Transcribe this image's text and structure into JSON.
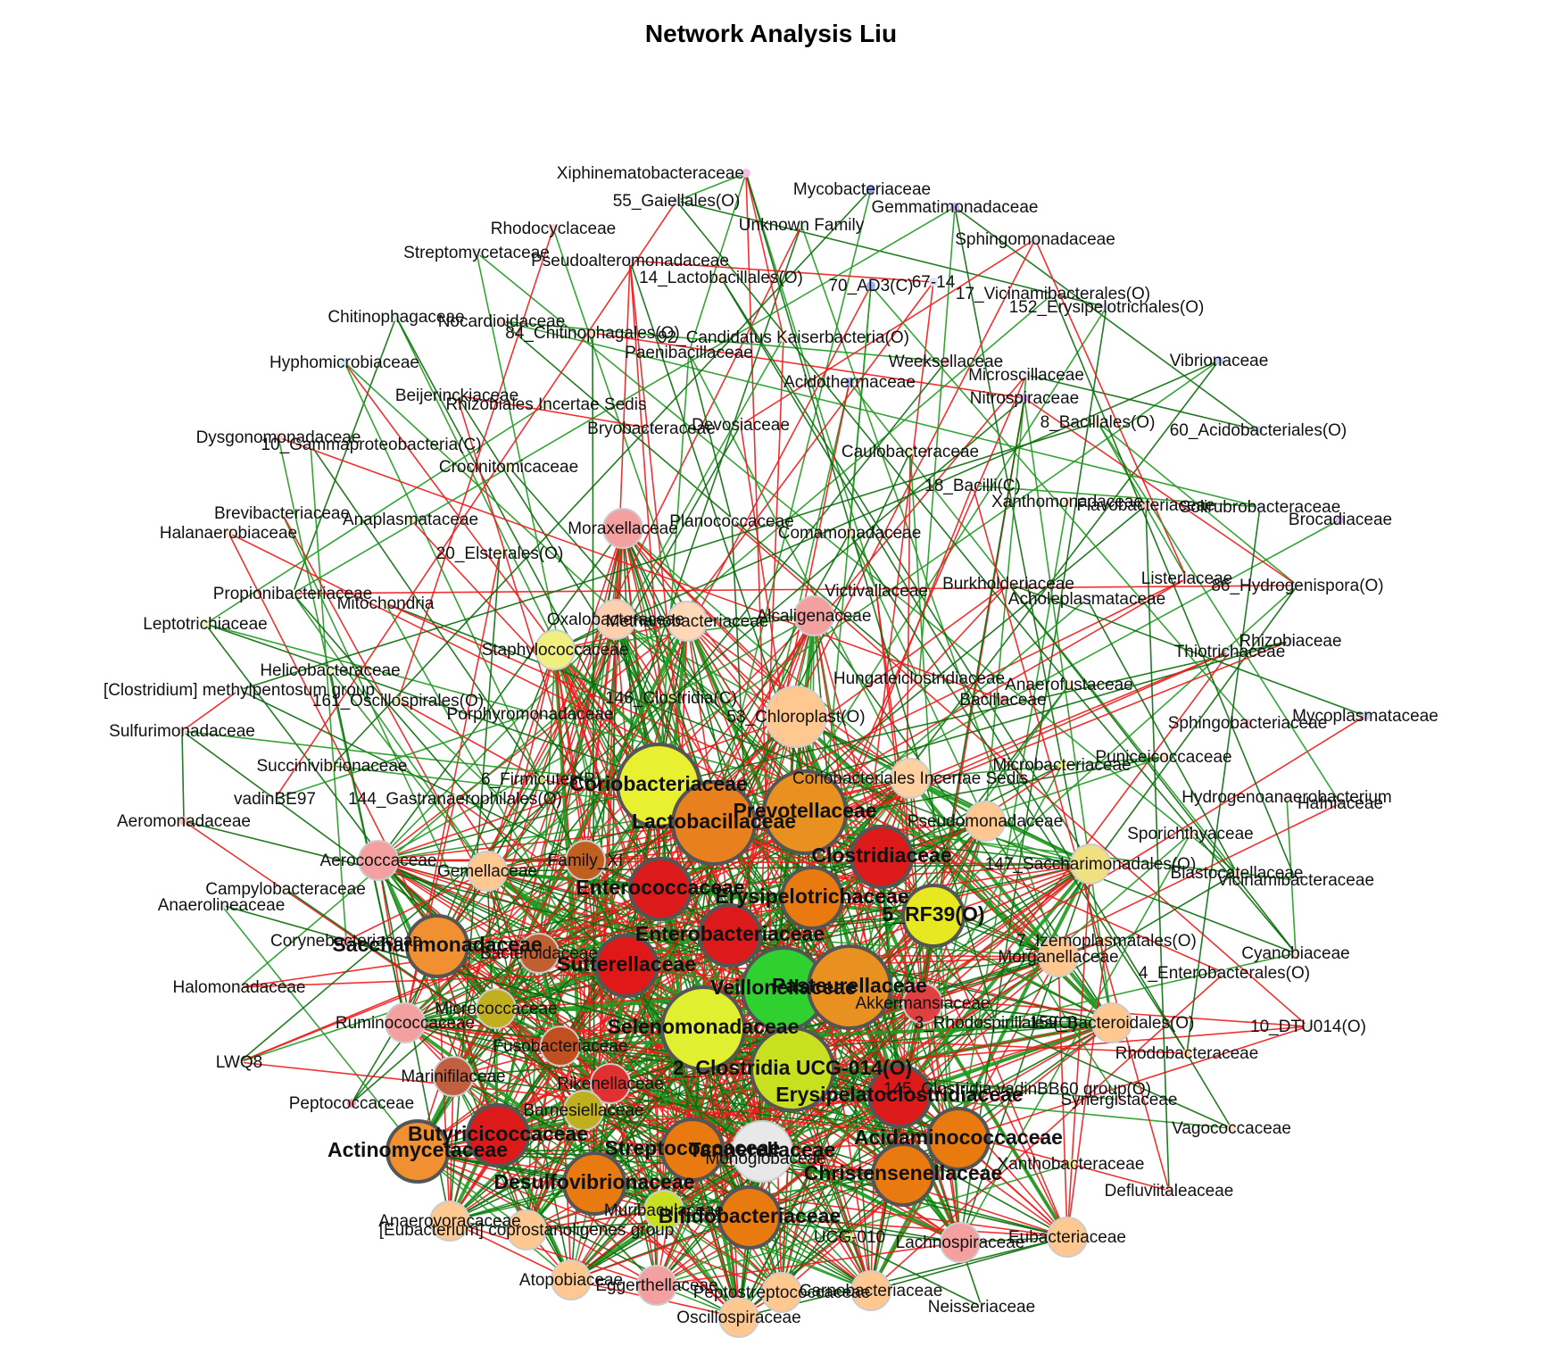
{
  "title": "Network Analysis Liu",
  "colors": {
    "positive_edge": "#1f9a1f",
    "strong_edge": "#0a6b0a",
    "negative_edge": "#ee1b1b"
  },
  "nodes": [
    {
      "label": "Xiphinematobacteraceae",
      "color": "#f0c0e8",
      "size": "s"
    },
    {
      "label": "55_Gaiellales(O)",
      "color": "#e0e0f5",
      "size": "s"
    },
    {
      "label": "Mycobacteriaceae",
      "color": "#9aa6f5",
      "size": "s"
    },
    {
      "label": "Gemmatimonadaceae",
      "color": "#c8b0f0",
      "size": "s"
    },
    {
      "label": "Unknown Family",
      "color": "#d8f0d8",
      "size": "s"
    },
    {
      "label": "Rhodocyclaceae",
      "color": "#ffd0d0",
      "size": "s"
    },
    {
      "label": "Sphingomonadaceae",
      "color": "#e0e0f0",
      "size": "s"
    },
    {
      "label": "Streptomycetaceae",
      "color": "#e0f0e0",
      "size": "s"
    },
    {
      "label": "Pseudoalteromonadaceae",
      "color": "#e8e8f8",
      "size": "s"
    },
    {
      "label": "14_Lactobacillales(O)",
      "color": "#ffe8c0",
      "size": "s"
    },
    {
      "label": "70_AD3(C)",
      "color": "#a0b0f5",
      "size": "s"
    },
    {
      "label": "67-14",
      "color": "#e0e0f8",
      "size": "s"
    },
    {
      "label": "17_Vicinamibacterales(O)",
      "color": "#e8e8f8",
      "size": "s"
    },
    {
      "label": "152_Erysipelotrichales(O)",
      "color": "#e8e8f8",
      "size": "s"
    },
    {
      "label": "Chitinophagaceae",
      "color": "#e0f0e0",
      "size": "s"
    },
    {
      "label": "Nocardioidaceae",
      "color": "#f8d8d8",
      "size": "s"
    },
    {
      "label": "84_Chitinophagales(O)",
      "color": "#ffe0c0",
      "size": "s"
    },
    {
      "label": "92_Candidatus Kaiserbacteria(O)",
      "color": "#ffe8c8",
      "size": "s"
    },
    {
      "label": "Paenibacillaceae",
      "color": "#f0f0f0",
      "size": "s"
    },
    {
      "label": "Hyphomicrobiaceae",
      "color": "#d0f0f0",
      "size": "s"
    },
    {
      "label": "Weeksellaceae",
      "color": "#f8c0c0",
      "size": "s"
    },
    {
      "label": "Vibrionaceae",
      "color": "#c0d0f8",
      "size": "s"
    },
    {
      "label": "Acidothermaceae",
      "color": "#a0b0f0",
      "size": "s"
    },
    {
      "label": "Microscillaceae",
      "color": "#e8e8f8",
      "size": "s"
    },
    {
      "label": "Beijerinckiaceae",
      "color": "#f0f0e0",
      "size": "s"
    },
    {
      "label": "Rhizobiales Incertae Sedis",
      "color": "#e8f0d8",
      "size": "s"
    },
    {
      "label": "Nitrospiraceae",
      "color": "#d0b0f0",
      "size": "s"
    },
    {
      "label": "Devosiaceae",
      "color": "#f0e8d8",
      "size": "s"
    },
    {
      "label": "8_Bacillales(O)",
      "color": "#ffe8c8",
      "size": "s"
    },
    {
      "label": "60_Acidobacteriales(O)",
      "color": "#d8d8f8",
      "size": "s"
    },
    {
      "label": "Bryobacteraceae",
      "color": "#e0e0f8",
      "size": "s"
    },
    {
      "label": "Dysgonomonadaceae",
      "color": "#ffd0d0",
      "size": "s"
    },
    {
      "label": "10_Gammaproteobacteria(C)",
      "color": "#f0f0f0",
      "size": "s"
    },
    {
      "label": "Caulobacteraceae",
      "color": "#f0f0c0",
      "size": "s"
    },
    {
      "label": "Crocinitomicaceae",
      "color": "#f0f0c0",
      "size": "s"
    },
    {
      "label": "18_Bacilli(C)",
      "color": "#f0f0f0",
      "size": "s"
    },
    {
      "label": "Xanthomonadaceae",
      "color": "#ffe0c8",
      "size": "s"
    },
    {
      "label": "Flavobacteriaceae",
      "color": "#ffc8c8",
      "size": "s"
    },
    {
      "label": "Solirubrobacteraceae",
      "color": "#e8e8f8",
      "size": "s"
    },
    {
      "label": "Brocadiaceae",
      "color": "#d8c0f0",
      "size": "s"
    },
    {
      "label": "Brevibacteriaceae",
      "color": "#f0f0e0",
      "size": "s"
    },
    {
      "label": "Anaplasmataceae",
      "color": "#f0f0c8",
      "size": "s"
    },
    {
      "label": "Halanaerobiaceae",
      "color": "#ffe8c8",
      "size": "s"
    },
    {
      "label": "Moraxellaceae",
      "color": "#f5a0a0",
      "size": "m"
    },
    {
      "label": "Planococcaceae",
      "color": "#f0f0f0",
      "size": "s"
    },
    {
      "label": "Comamonadaceae",
      "color": "#ffd8b0",
      "size": "s"
    },
    {
      "label": "20_Elsterales(O)",
      "color": "#f0f0c0",
      "size": "s"
    },
    {
      "label": "Burkholderiaceae",
      "color": "#ffe8d8",
      "size": "s"
    },
    {
      "label": "Listeriaceae",
      "color": "#ffe0e0",
      "size": "s"
    },
    {
      "label": "86_Hydrogenispora(O)",
      "color": "#e8e8f8",
      "size": "s"
    },
    {
      "label": "Acholeplasmataceae",
      "color": "#e8e8f8",
      "size": "s"
    },
    {
      "label": "Propionibacteriaceae",
      "color": "#f0f0e8",
      "size": "s"
    },
    {
      "label": "Mitochondria",
      "color": "#f0f0e0",
      "size": "s"
    },
    {
      "label": "Victivallaceae",
      "color": "#ffe0c8",
      "size": "s"
    },
    {
      "label": "Rhizobiaceae",
      "color": "#e8e8f8",
      "size": "s"
    },
    {
      "label": "Leptotrichiaceae",
      "color": "#f0f0c0",
      "size": "s"
    },
    {
      "label": "Oxalobacteraceae",
      "color": "#ffd0b0",
      "size": "m"
    },
    {
      "label": "Methanobacteriaceae",
      "color": "#ffd8b8",
      "size": "m"
    },
    {
      "label": "Alcaligenaceae",
      "color": "#f5a0a0",
      "size": "m"
    },
    {
      "label": "Thiotrichaceae",
      "color": "#e8e8f8",
      "size": "s"
    },
    {
      "label": "Staphylococcaceae",
      "color": "#f0f080",
      "size": "m"
    },
    {
      "label": "Helicobacteraceae",
      "color": "#f0f0c8",
      "size": "s"
    },
    {
      "label": "Hungateiclostridiaceae",
      "color": "#ffe0c8",
      "size": "s"
    },
    {
      "label": "Anaerofustaceae",
      "color": "#ffe0c8",
      "size": "s"
    },
    {
      "label": "[Clostridium] methylpentosum group",
      "color": "#f0f0f0",
      "size": "s"
    },
    {
      "label": "161_Oscillospirales(O)",
      "color": "#f0f0c0",
      "size": "s"
    },
    {
      "label": "146_Clostridia(C)",
      "color": "#b8e070",
      "size": "s"
    },
    {
      "label": "Bacillaceae",
      "color": "#f5a0a0",
      "size": "s"
    },
    {
      "label": "Mycoplasmataceae",
      "color": "#d0d0f8",
      "size": "s"
    },
    {
      "label": "Porphyromonadaceae",
      "color": "#f8c8c8",
      "size": "s"
    },
    {
      "label": "53_Chloroplast(O)",
      "color": "#ffc890",
      "size": "l"
    },
    {
      "label": "Sphingobacteriaceae",
      "color": "#ffc8c8",
      "size": "s"
    },
    {
      "label": "Sulfurimonadaceae",
      "color": "#f0e0e0",
      "size": "s"
    },
    {
      "label": "Puniceicoccaceae",
      "color": "#ffe0c8",
      "size": "s"
    },
    {
      "label": "Succinivibrionaceae",
      "color": "#f0f0c0",
      "size": "s"
    },
    {
      "label": "Microbacteriaceae",
      "color": "#f0f080",
      "size": "s"
    },
    {
      "label": "Coriobacteriales Incertae Sedis",
      "color": "#ffd0a0",
      "size": "m"
    },
    {
      "label": "6_Firmicutes(P)",
      "color": "#c0e080",
      "size": "s"
    },
    {
      "label": "Coriobacteriaceae",
      "color": "#e8f030",
      "size": "xl"
    },
    {
      "label": "vadinBE97",
      "color": "#f0f0f0",
      "size": "s"
    },
    {
      "label": "144_Gastranaerophilales(O)",
      "color": "#f0f0c0",
      "size": "s"
    },
    {
      "label": "Hydrogenoanaerobacterium",
      "color": "#f0e0e0",
      "size": "s"
    },
    {
      "label": "Hafniaceae",
      "color": "#f0e0e0",
      "size": "s"
    },
    {
      "label": "Prevotellaceae",
      "color": "#e89020",
      "size": "xl"
    },
    {
      "label": "Pseudomonadaceae",
      "color": "#ffc890",
      "size": "m"
    },
    {
      "label": "Aeromonadaceae",
      "color": "#f5c0c0",
      "size": "s"
    },
    {
      "label": "Lactobacillaceae",
      "color": "#e88020",
      "size": "xl"
    },
    {
      "label": "Sporichthyaceae",
      "color": "#ffe0c8",
      "size": "s"
    },
    {
      "label": "Aerococcaceae",
      "color": "#f5a0a0",
      "size": "m"
    },
    {
      "label": "Family_XI",
      "color": "#c06020",
      "size": "m"
    },
    {
      "label": "Gemellaceae",
      "color": "#ffc890",
      "size": "m"
    },
    {
      "label": "Clostridiaceae",
      "color": "#dd1a1a",
      "size": "l"
    },
    {
      "label": "147_Saccharimonadales(O)",
      "color": "#f0e080",
      "size": "m"
    },
    {
      "label": "Blastocatellaceae",
      "color": "#ffe0c8",
      "size": "s"
    },
    {
      "label": "Vicinamibacteraceae",
      "color": "#e8e8f8",
      "size": "s"
    },
    {
      "label": "Campylobacteraceae",
      "color": "#f0f0e0",
      "size": "s"
    },
    {
      "label": "Enterococcaceae",
      "color": "#dd1a1a",
      "size": "l"
    },
    {
      "label": "Anaerolineaceae",
      "color": "#e8e8f8",
      "size": "s"
    },
    {
      "label": "Erysipelotrichaceae",
      "color": "#e87a10",
      "size": "l"
    },
    {
      "label": "5_RF39(O)",
      "color": "#e8e820",
      "size": "l"
    },
    {
      "label": "Enterobacteriaceae",
      "color": "#dd1a1a",
      "size": "l"
    },
    {
      "label": "Corynebacteriaceae",
      "color": "#f5a0a0",
      "size": "s"
    },
    {
      "label": "Saccharimonadaceae",
      "color": "#f09030",
      "size": "l"
    },
    {
      "label": "7_Izemoplasmatales(O)",
      "color": "#ffd0a0",
      "size": "s"
    },
    {
      "label": "Cyanobiaceae",
      "color": "#ffe0c8",
      "size": "s"
    },
    {
      "label": "Bacteroidaceae",
      "color": "#c06030",
      "size": "m"
    },
    {
      "label": "Sutterellaceae",
      "color": "#e01818",
      "size": "l"
    },
    {
      "label": "Morganellaceae",
      "color": "#ffc890",
      "size": "m"
    },
    {
      "label": "4_Enterobacterales(O)",
      "color": "#f0f0f0",
      "size": "s"
    },
    {
      "label": "Veillonellaceae",
      "color": "#30d030",
      "size": "xl"
    },
    {
      "label": "Pasteurellaceae",
      "color": "#e89020",
      "size": "xl"
    },
    {
      "label": "Halomonadaceae",
      "color": "#f0f0f0",
      "size": "s"
    },
    {
      "label": "Micrococcaceae",
      "color": "#c0b020",
      "size": "m"
    },
    {
      "label": "Akkermansiaceae",
      "color": "#e04040",
      "size": "m"
    },
    {
      "label": "Ruminococcaceae",
      "color": "#f5a0a0",
      "size": "m"
    },
    {
      "label": "3_Rhodospirillales(O)",
      "color": "#f0f0e0",
      "size": "s"
    },
    {
      "label": "159_Bacteroidales(O)",
      "color": "#ffc890",
      "size": "m"
    },
    {
      "label": "10_DTU014(O)",
      "color": "#f0f0f0",
      "size": "s"
    },
    {
      "label": "Selenomonadaceae",
      "color": "#e0f030",
      "size": "xl"
    },
    {
      "label": "Fusobacteriaceae",
      "color": "#c05020",
      "size": "m"
    },
    {
      "label": "Rhodobacteraceae",
      "color": "#ffd0a0",
      "size": "s"
    },
    {
      "label": "LWQ8",
      "color": "#f0f0f0",
      "size": "s"
    },
    {
      "label": "2_Clostridia UCG-014(O)",
      "color": "#c8e020",
      "size": "xl"
    },
    {
      "label": "Marinifilaceae",
      "color": "#c06040",
      "size": "m"
    },
    {
      "label": "145_Clostridia vadinBB60 group(O)",
      "color": "#f0f0c0",
      "size": "s"
    },
    {
      "label": "Rikenellaceae",
      "color": "#e03030",
      "size": "m"
    },
    {
      "label": "Erysipelatoclostridiaceae",
      "color": "#dd1a1a",
      "size": "l"
    },
    {
      "label": "Synergistaceae",
      "color": "#ffd0d0",
      "size": "s"
    },
    {
      "label": "Peptococcaceae",
      "color": "#f5a0a0",
      "size": "s"
    },
    {
      "label": "Barnesiellaceae",
      "color": "#c0b020",
      "size": "m"
    },
    {
      "label": "Vagococcaceae",
      "color": "#ffe0c8",
      "size": "s"
    },
    {
      "label": "Butyricicoccaceae",
      "color": "#dd1a1a",
      "size": "l"
    },
    {
      "label": "Actinomycetaceae",
      "color": "#f09030",
      "size": "l"
    },
    {
      "label": "Streptococcaceae",
      "color": "#e87a10",
      "size": "l"
    },
    {
      "label": "Tannerellaceae",
      "color": "#e8e8e8",
      "size": "l"
    },
    {
      "label": "Acidaminococcaceae",
      "color": "#e87a10",
      "size": "l"
    },
    {
      "label": "Monoglobaceae",
      "color": "#c06020",
      "size": "m"
    },
    {
      "label": "Xanthobacteraceae",
      "color": "#f0f080",
      "size": "s"
    },
    {
      "label": "Christensenellaceae",
      "color": "#e87a10",
      "size": "l"
    },
    {
      "label": "Defluviitaleaceae",
      "color": "#ffd0d0",
      "size": "s"
    },
    {
      "label": "Desulfovibrionaceae",
      "color": "#e87a10",
      "size": "l"
    },
    {
      "label": "Anaerovoracaceae",
      "color": "#ffc890",
      "size": "m"
    },
    {
      "label": "[Eubacterium] coprostanoligenes group",
      "color": "#ffc890",
      "size": "m"
    },
    {
      "label": "Muribaculaceae",
      "color": "#c8e020",
      "size": "m"
    },
    {
      "label": "Bifidobacteriaceae",
      "color": "#e87a10",
      "size": "l"
    },
    {
      "label": "UCG-010",
      "color": "#c8f090",
      "size": "s"
    },
    {
      "label": "Lachnospiraceae",
      "color": "#f5a0a0",
      "size": "m"
    },
    {
      "label": "Eubacteriaceae",
      "color": "#ffc890",
      "size": "m"
    },
    {
      "label": "Atopobiaceae",
      "color": "#ffc890",
      "size": "m"
    },
    {
      "label": "Eggerthellaceae",
      "color": "#f5a0a0",
      "size": "m"
    },
    {
      "label": "Peptostreptococcaceae",
      "color": "#ffc890",
      "size": "m"
    },
    {
      "label": "Carnobacteriaceae",
      "color": "#ffc890",
      "size": "m"
    },
    {
      "label": "Oscillospiraceae",
      "color": "#ffc890",
      "size": "m"
    },
    {
      "label": "Neisseriaceae",
      "color": "#f0f0f0",
      "size": "s"
    }
  ]
}
